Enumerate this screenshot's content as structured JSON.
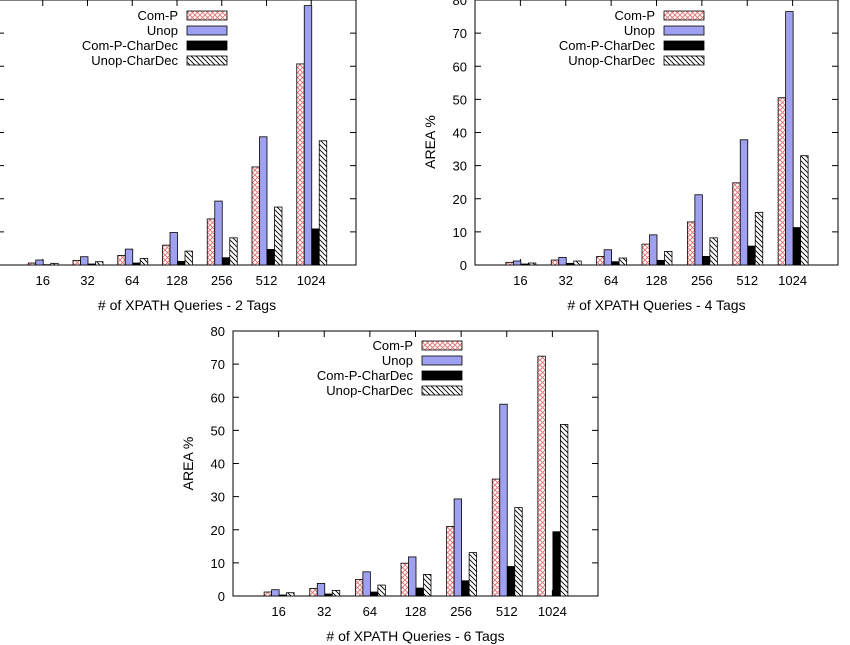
{
  "chart_data": [
    {
      "type": "bar",
      "title": "",
      "xlabel": "# of XPATH Queries - 2 Tags",
      "ylabel": "",
      "ylim": [
        0,
        80
      ],
      "yticks": [],
      "categories": [
        "16",
        "32",
        "64",
        "128",
        "256",
        "512",
        "1024"
      ],
      "legend_position": "top-left",
      "grid": false,
      "series": [
        {
          "name": "Com-P",
          "values": [
            0.6,
            1.4,
            2.9,
            6.0,
            13.9,
            29.6,
            60.7
          ],
          "color": "#f2b0b0",
          "pattern": "crosshatch"
        },
        {
          "name": "Unop",
          "values": [
            1.5,
            2.5,
            4.8,
            9.8,
            19.3,
            38.7,
            78.3
          ],
          "color": "#a0a0f0",
          "pattern": "solid"
        },
        {
          "name": "Com-P-CharDec",
          "values": [
            0.1,
            0.3,
            0.6,
            1.1,
            2.2,
            4.7,
            10.9
          ],
          "color": "#000000",
          "pattern": "solid"
        },
        {
          "name": "Unop-CharDec",
          "values": [
            0.5,
            1.0,
            2.0,
            4.2,
            8.2,
            17.5,
            37.5
          ],
          "color": "#ffffff",
          "pattern": "diagonal"
        }
      ]
    },
    {
      "type": "bar",
      "title": "",
      "xlabel": "# of XPATH Queries - 4 Tags",
      "ylabel": "AREA %",
      "ylim": [
        0,
        80
      ],
      "yticks": [
        "0",
        "10",
        "20",
        "30",
        "40",
        "50",
        "60",
        "70",
        "80"
      ],
      "categories": [
        "16",
        "32",
        "64",
        "128",
        "256",
        "512",
        "1024"
      ],
      "legend_position": "top-left",
      "grid": false,
      "series": [
        {
          "name": "Com-P",
          "values": [
            0.8,
            1.5,
            2.6,
            6.3,
            13.0,
            24.8,
            50.5
          ],
          "color": "#f2b0b0",
          "pattern": "crosshatch"
        },
        {
          "name": "Unop",
          "values": [
            1.2,
            2.3,
            4.6,
            9.1,
            21.2,
            37.8,
            76.5
          ],
          "color": "#a0a0f0",
          "pattern": "solid"
        },
        {
          "name": "Com-P-CharDec",
          "values": [
            0.3,
            0.5,
            1.0,
            1.4,
            2.6,
            5.7,
            11.3
          ],
          "color": "#000000",
          "pattern": "solid"
        },
        {
          "name": "Unop-CharDec",
          "values": [
            0.6,
            1.2,
            2.1,
            4.1,
            8.2,
            15.9,
            33.0
          ],
          "color": "#ffffff",
          "pattern": "diagonal"
        }
      ]
    },
    {
      "type": "bar",
      "title": "",
      "xlabel": "# of XPATH Queries - 6 Tags",
      "ylabel": "AREA %",
      "ylim": [
        0,
        80
      ],
      "yticks": [
        "0",
        "10",
        "20",
        "30",
        "40",
        "50",
        "60",
        "70",
        "80"
      ],
      "categories": [
        "16",
        "32",
        "64",
        "128",
        "256",
        "512",
        "1024"
      ],
      "legend_position": "top-left",
      "grid": false,
      "series": [
        {
          "name": "Com-P",
          "values": [
            1.2,
            2.3,
            5.0,
            9.9,
            21.0,
            35.3,
            72.4
          ],
          "color": "#f2b0b0",
          "pattern": "crosshatch"
        },
        {
          "name": "Unop",
          "values": [
            1.9,
            3.8,
            7.3,
            11.8,
            29.3,
            57.9,
            0
          ],
          "color": "#a0a0f0",
          "pattern": "solid"
        },
        {
          "name": "Com-P-CharDec",
          "values": [
            0.3,
            0.6,
            1.2,
            2.4,
            4.6,
            8.9,
            19.4
          ],
          "color": "#000000",
          "pattern": "solid"
        },
        {
          "name": "Unop-CharDec",
          "values": [
            1.0,
            1.7,
            3.3,
            6.5,
            13.1,
            26.7,
            51.8
          ],
          "color": "#ffffff",
          "pattern": "diagonal"
        }
      ]
    }
  ]
}
